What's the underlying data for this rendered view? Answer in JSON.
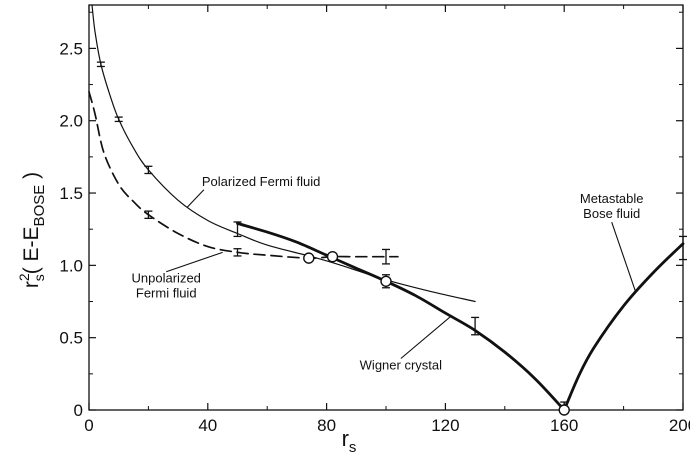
{
  "chart_data": {
    "type": "line",
    "xlim": [
      0,
      200
    ],
    "ylim": [
      0,
      2.8
    ],
    "x_ticks": [
      "0",
      "40",
      "80",
      "120",
      "160",
      "200"
    ],
    "x_tick_values": [
      0,
      40,
      80,
      120,
      160,
      200
    ],
    "y_ticks": [
      "0",
      "0.5",
      "1.0",
      "1.5",
      "2.0",
      "2.5"
    ],
    "y_tick_values": [
      0,
      0.5,
      1.0,
      1.5,
      2.0,
      2.5
    ],
    "xlabel": {
      "main": "r",
      "sub": "s"
    },
    "ylabel": {
      "main": "r",
      "sup": "2",
      "sub": "s",
      "expr_open": "( E-E",
      "expr_sub": "BOSE",
      "expr_close": " )"
    },
    "grid": false,
    "series": [
      {
        "name": "Polarized Fermi fluid",
        "style": "thin-solid",
        "points": [
          [
            1,
            2.8
          ],
          [
            2,
            2.62
          ],
          [
            4,
            2.39
          ],
          [
            7,
            2.18
          ],
          [
            10,
            2.01
          ],
          [
            15,
            1.81
          ],
          [
            20,
            1.66
          ],
          [
            30,
            1.45
          ],
          [
            40,
            1.31
          ],
          [
            50,
            1.22
          ],
          [
            60,
            1.14
          ],
          [
            75,
            1.06
          ],
          [
            85,
            1.0
          ],
          [
            100,
            0.9
          ],
          [
            115,
            0.82
          ],
          [
            130,
            0.75
          ]
        ],
        "error_bars": [
          [
            4,
            2.39,
            0.015
          ],
          [
            10,
            2.01,
            0.015
          ],
          [
            20,
            1.66,
            0.025
          ],
          [
            50,
            1.25,
            0.05
          ]
        ]
      },
      {
        "name": "Unpolarized Fermi fluid",
        "style": "dashed",
        "points": [
          [
            0,
            2.2
          ],
          [
            2,
            2.05
          ],
          [
            5,
            1.78
          ],
          [
            10,
            1.56
          ],
          [
            15,
            1.44
          ],
          [
            20,
            1.35
          ],
          [
            30,
            1.22
          ],
          [
            40,
            1.13
          ],
          [
            50,
            1.09
          ],
          [
            60,
            1.07
          ],
          [
            74,
            1.05
          ],
          [
            82,
            1.06
          ],
          [
            90,
            1.06
          ],
          [
            104,
            1.06
          ]
        ],
        "error_bars": [
          [
            20,
            1.35,
            0.025
          ],
          [
            50,
            1.09,
            0.025
          ],
          [
            100,
            1.06,
            0.05
          ]
        ]
      },
      {
        "name": "Wigner crystal",
        "style": "thick-solid",
        "points": [
          [
            50,
            1.29
          ],
          [
            60,
            1.23
          ],
          [
            70,
            1.16
          ],
          [
            80,
            1.07
          ],
          [
            90,
            0.98
          ],
          [
            100,
            0.89
          ],
          [
            110,
            0.79
          ],
          [
            120,
            0.67
          ],
          [
            130,
            0.55
          ],
          [
            140,
            0.4
          ],
          [
            150,
            0.22
          ],
          [
            160,
            0.0
          ]
        ],
        "error_bars": [
          [
            100,
            0.89,
            0.045
          ],
          [
            130,
            0.58,
            0.06
          ],
          [
            160,
            0.02,
            0.035
          ]
        ]
      },
      {
        "name": "Metastable Bose fluid",
        "style": "thick-solid",
        "points": [
          [
            160,
            0.0
          ],
          [
            165,
            0.24
          ],
          [
            170,
            0.43
          ],
          [
            180,
            0.72
          ],
          [
            190,
            0.95
          ],
          [
            200,
            1.15
          ]
        ],
        "error_bars": [
          [
            200,
            1.12,
            0.08
          ]
        ]
      }
    ],
    "markers": [
      {
        "x": 74,
        "y": 1.05,
        "shape": "open-circle"
      },
      {
        "x": 82,
        "y": 1.06,
        "shape": "open-circle"
      },
      {
        "x": 100,
        "y": 0.89,
        "shape": "open-circle"
      },
      {
        "x": 160,
        "y": 0.0,
        "shape": "open-circle"
      }
    ],
    "annotations": [
      {
        "text": "Polarized Fermi fluid",
        "lines": [
          "Polarized Fermi fluid"
        ],
        "at": [
          38,
          1.55
        ],
        "arrow_to": [
          33,
          1.4
        ],
        "align": "start"
      },
      {
        "text": "Unpolarized Fermi fluid",
        "lines": [
          "Unpolarized",
          "Fermi fluid"
        ],
        "at": [
          26,
          0.88
        ],
        "arrow_to": [
          45,
          1.09
        ],
        "align": "middle"
      },
      {
        "text": "Wigner crystal",
        "lines": [
          "Wigner crystal"
        ],
        "at": [
          105,
          0.28
        ],
        "arrow_to": [
          122,
          0.65
        ],
        "align": "middle"
      },
      {
        "text": "Metastable Bose fluid",
        "lines": [
          "Metastable",
          "Bose fluid"
        ],
        "at": [
          176,
          1.43
        ],
        "arrow_to": [
          184,
          0.82
        ],
        "align": "middle"
      }
    ]
  }
}
